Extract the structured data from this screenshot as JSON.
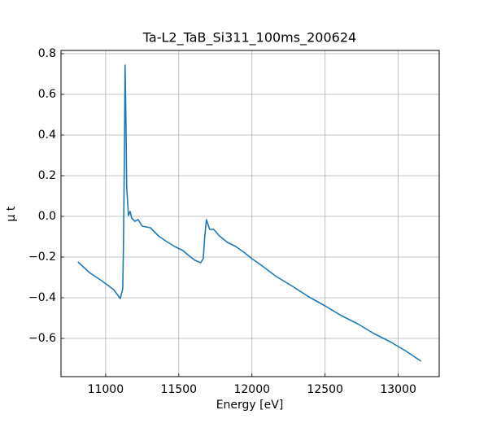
{
  "chart_data": {
    "type": "line",
    "title": "Ta-L2_TaB_Si311_100ms_200624",
    "xlabel": "Energy [eV]",
    "ylabel": "μ t",
    "color": "#1f77b4",
    "grid": true,
    "xlim": [
      10695,
      13280
    ],
    "ylim": [
      -0.788,
      0.816
    ],
    "xticks": [
      11000,
      11500,
      12000,
      12500,
      13000
    ],
    "yticks": [
      {
        "value": -0.6,
        "label": "−0.6"
      },
      {
        "value": -0.4,
        "label": "−0.4"
      },
      {
        "value": -0.2,
        "label": "−0.2"
      },
      {
        "value": 0,
        "label": "0.0"
      },
      0.2,
      0.4,
      0.6,
      0.8
    ],
    "x": [
      10811,
      10889,
      10972,
      11055,
      11100,
      11117,
      11122,
      11128,
      11133,
      11139,
      11144,
      11156,
      11167,
      11178,
      11200,
      11222,
      11250,
      11306,
      11361,
      11417,
      11472,
      11528,
      11567,
      11611,
      11650,
      11667,
      11678,
      11689,
      11711,
      11739,
      11778,
      11833,
      11889,
      11944,
      12000,
      12056,
      12167,
      12278,
      12389,
      12500,
      12611,
      12722,
      12833,
      12944,
      13056,
      13156
    ],
    "values": [
      -0.224,
      -0.276,
      -0.316,
      -0.36,
      -0.404,
      -0.356,
      -0.136,
      0.264,
      0.744,
      0.464,
      0.144,
      0.004,
      0.024,
      -0.008,
      -0.024,
      -0.016,
      -0.048,
      -0.056,
      -0.096,
      -0.124,
      -0.148,
      -0.168,
      -0.192,
      -0.216,
      -0.228,
      -0.208,
      -0.096,
      -0.016,
      -0.064,
      -0.064,
      -0.096,
      -0.128,
      -0.148,
      -0.176,
      -0.208,
      -0.236,
      -0.296,
      -0.344,
      -0.396,
      -0.44,
      -0.488,
      -0.528,
      -0.576,
      -0.616,
      -0.664,
      -0.712
    ]
  }
}
